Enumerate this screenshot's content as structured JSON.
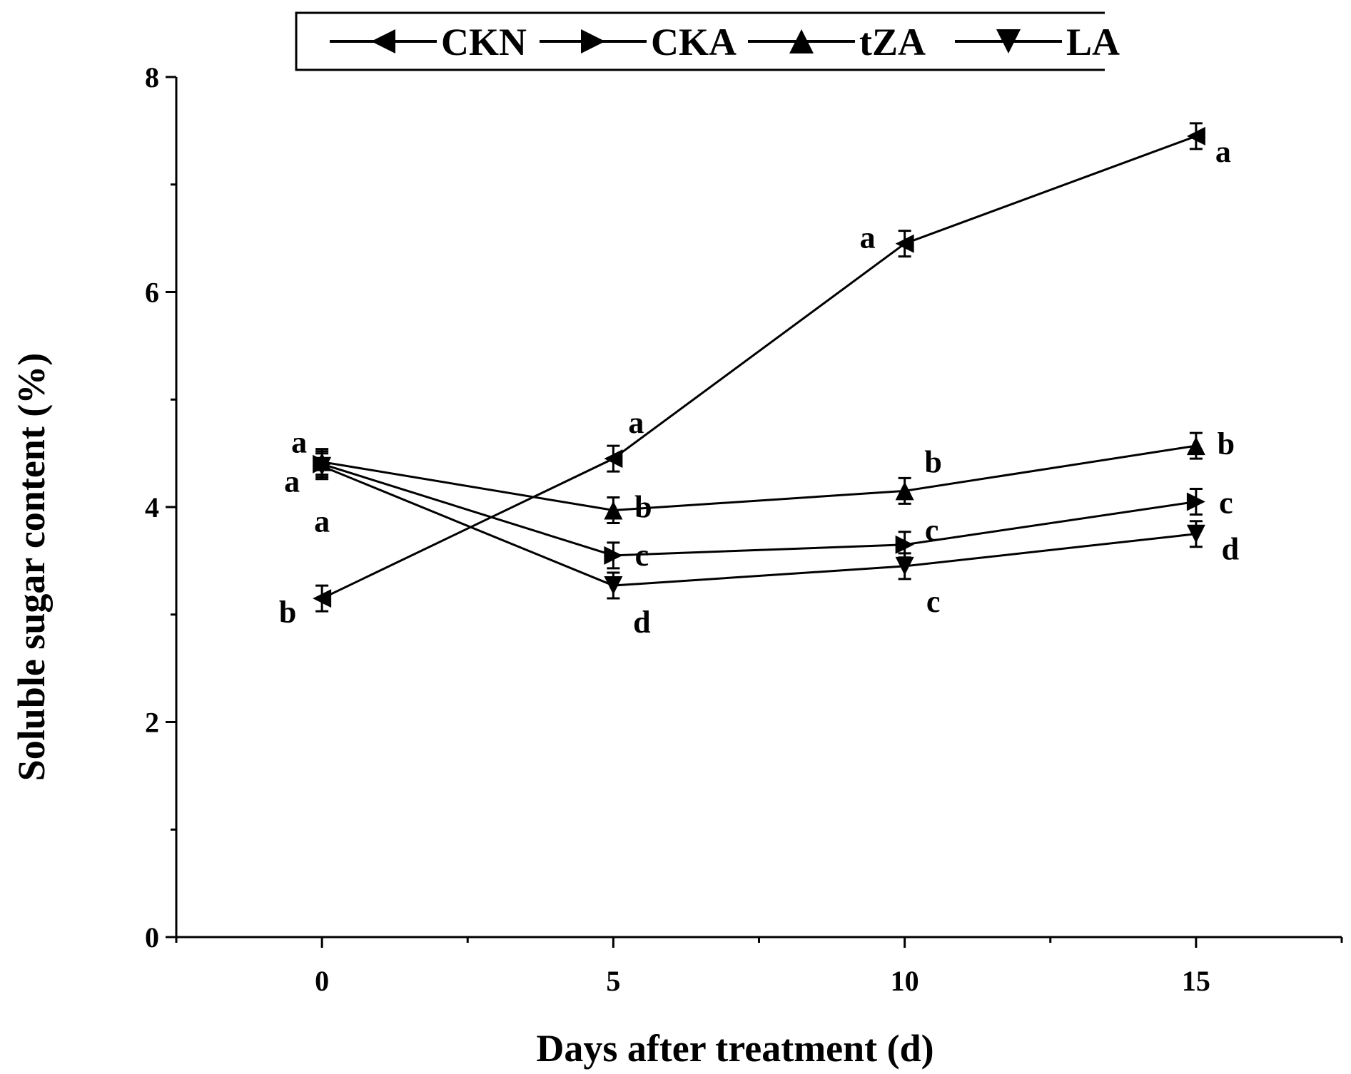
{
  "chart_data": {
    "type": "line",
    "xlabel": "Days after treatment (d)",
    "ylabel": "Soluble sugar content (%)",
    "xlim": [
      -2.5,
      17.5
    ],
    "ylim": [
      0,
      8
    ],
    "x_ticks": [
      0,
      5,
      10,
      15
    ],
    "y_ticks": [
      0,
      2,
      4,
      6,
      8
    ],
    "x_minor_ticks": [
      -2.5,
      2.5,
      7.5,
      12.5,
      17.5
    ],
    "y_minor_ticks": [
      1,
      3,
      5,
      7
    ],
    "grid": false,
    "legend_position": "top",
    "x": [
      0,
      5,
      10,
      15
    ],
    "series": [
      {
        "name": "CKN",
        "marker": "triangle-left",
        "values": [
          3.15,
          4.45,
          6.45,
          7.45
        ],
        "sig_labels": [
          "b",
          "a",
          "a",
          "a"
        ]
      },
      {
        "name": "CKA",
        "marker": "triangle-right",
        "values": [
          4.4,
          3.55,
          3.65,
          4.05
        ],
        "sig_labels": [
          "a",
          "c",
          "c",
          "c"
        ]
      },
      {
        "name": "tZA",
        "marker": "triangle-up",
        "values": [
          4.42,
          3.97,
          4.15,
          4.57
        ],
        "sig_labels": [
          "a",
          "b",
          "b",
          "b"
        ]
      },
      {
        "name": "LA",
        "marker": "triangle-down",
        "values": [
          4.38,
          3.27,
          3.45,
          3.75
        ],
        "sig_labels": [
          "a",
          "d",
          "c",
          "d"
        ]
      }
    ]
  }
}
